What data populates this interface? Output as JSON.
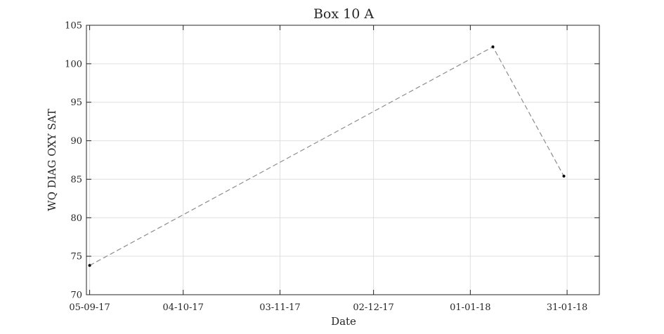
{
  "chart_data": {
    "type": "line",
    "title": "Box 10 A",
    "xlabel": "Date",
    "ylabel": "WQ DIAG OXY SAT",
    "x_type": "date",
    "xlim": [
      "2017-09-04",
      "2018-02-10"
    ],
    "ylim": [
      70,
      105
    ],
    "x_ticks": [
      {
        "date": "2017-09-05",
        "label": "05-09-17"
      },
      {
        "date": "2017-10-04",
        "label": "04-10-17"
      },
      {
        "date": "2017-11-03",
        "label": "03-11-17"
      },
      {
        "date": "2017-12-02",
        "label": "02-12-17"
      },
      {
        "date": "2018-01-01",
        "label": "01-01-18"
      },
      {
        "date": "2018-01-31",
        "label": "31-01-18"
      }
    ],
    "y_ticks": [
      70,
      75,
      80,
      85,
      90,
      95,
      100,
      105
    ],
    "grid": true,
    "series": [
      {
        "line_style": "dashed",
        "color": "#8c8c8c",
        "marker_color": "#000000",
        "points": [
          {
            "x": "2017-09-05",
            "y": 73.8
          },
          {
            "x": "2018-01-08",
            "y": 102.2
          },
          {
            "x": "2018-01-30",
            "y": 85.4
          }
        ]
      }
    ]
  }
}
